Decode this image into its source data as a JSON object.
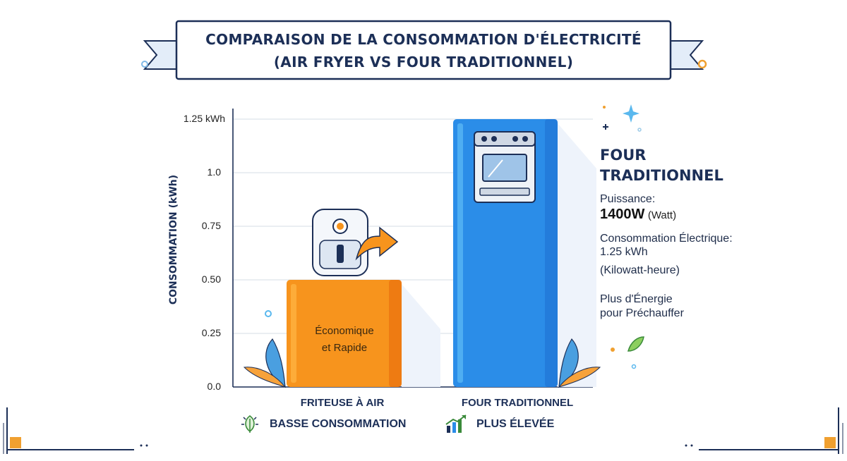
{
  "banner": {
    "line1": "COMPARAISON DE LA CONSOMMATION D'ÉLECTRICITÉ",
    "line2": "(AIR FRYER VS FOUR TRADITIONNEL)"
  },
  "chart_data": {
    "type": "bar",
    "title": "COMPARAISON DE LA CONSOMMATION D'ÉLECTRICITÉ (AIR FRYER VS FOUR TRADITIONNEL)",
    "ylabel": "CONSOMMATION (kWh)",
    "xlabel": "",
    "ylim": [
      0,
      1.25
    ],
    "yticks": [
      "0.0",
      "0.25",
      "0.50",
      "0.75",
      "1.0",
      "1.25 kWh"
    ],
    "categories": [
      "FRITEUSE À AIR",
      "FOUR TRADITIONNEL"
    ],
    "values": [
      0.5,
      1.25
    ],
    "colors": [
      "#f7941d",
      "#2b8de8"
    ],
    "grid": true,
    "annotations": {
      "bar_label": [
        "Économique",
        "et Rapide"
      ]
    }
  },
  "badges": {
    "low": "BASSE CONSOMMATION",
    "high": "PLUS ÉLEVÉE",
    "low_icon": "leaf-bulb-icon",
    "high_icon": "rising-chart-icon"
  },
  "info": {
    "title_line1": "FOUR",
    "title_line2": "TRADITIONNEL",
    "power_label": "Puissance:",
    "power_value": "1400W",
    "power_unit": "(Watt)",
    "consumption_label": "Consommation Électrique:",
    "consumption_value": "1.25 kWh",
    "consumption_unit": "(Kilowatt-heure)",
    "note_line1": "Plus d'Énergie",
    "note_line2": "pour Préchauffer"
  },
  "icons": {
    "air_fryer": "air-fryer-icon",
    "oven": "oven-icon",
    "arrow": "arrow-icon",
    "leaf": "leaf-icon",
    "sparkle": "sparkle-icon"
  }
}
